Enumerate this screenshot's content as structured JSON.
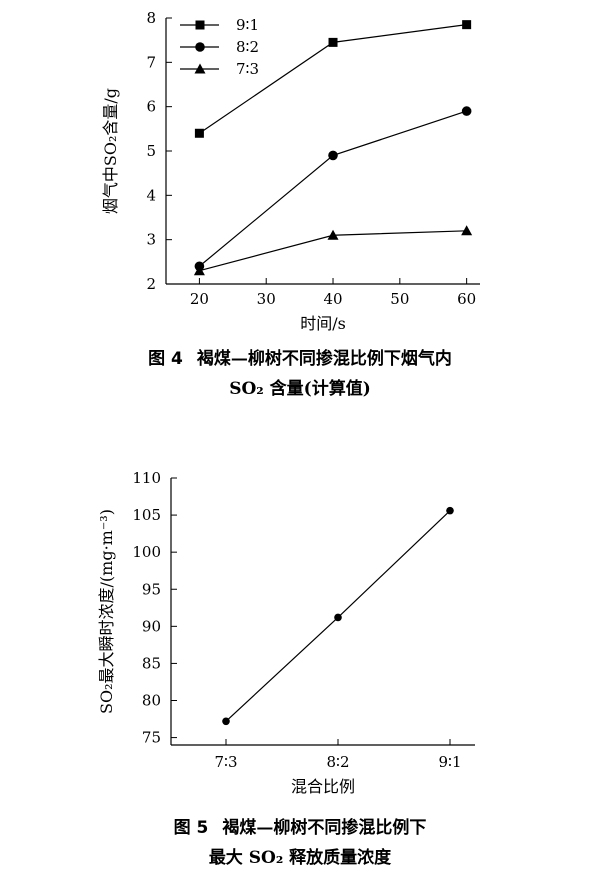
{
  "figures": [
    {
      "caption_number": "图 4",
      "caption_line1": "褐煤—柳树不同掺混比例下烟气内",
      "caption_line2": "SO₂ 含量(计算值)"
    },
    {
      "caption_number": "图 5",
      "caption_line1": "褐煤—柳树不同掺混比例下",
      "caption_line2": "最大 SO₂ 释放质量浓度"
    }
  ],
  "chart_data": [
    {
      "type": "line",
      "xlabel": "时间/s",
      "ylabel": "烟气中SO₂含量/g",
      "xlim": [
        15,
        62
      ],
      "ylim": [
        2,
        8
      ],
      "xticks": [
        20,
        30,
        40,
        50,
        60
      ],
      "yticks": [
        2,
        3,
        4,
        5,
        6,
        7,
        8
      ],
      "x": [
        20,
        40,
        60
      ],
      "legend_position": "top-left",
      "series": [
        {
          "name": "9∶1",
          "marker": "square",
          "values": [
            5.4,
            7.45,
            7.85
          ]
        },
        {
          "name": "8∶2",
          "marker": "circle",
          "values": [
            2.4,
            4.9,
            5.9
          ]
        },
        {
          "name": "7∶3",
          "marker": "triangle",
          "values": [
            2.3,
            3.1,
            3.2
          ]
        }
      ]
    },
    {
      "type": "line",
      "xlabel": "混合比例",
      "ylabel": "SO₂最大瞬时浓度/(mg·m⁻³)",
      "ylim": [
        74,
        110
      ],
      "yticks": [
        75,
        80,
        85,
        90,
        95,
        100,
        105,
        110
      ],
      "categories": [
        "7∶3",
        "8∶2",
        "9∶1"
      ],
      "values": [
        77.2,
        91.2,
        105.6
      ]
    }
  ]
}
